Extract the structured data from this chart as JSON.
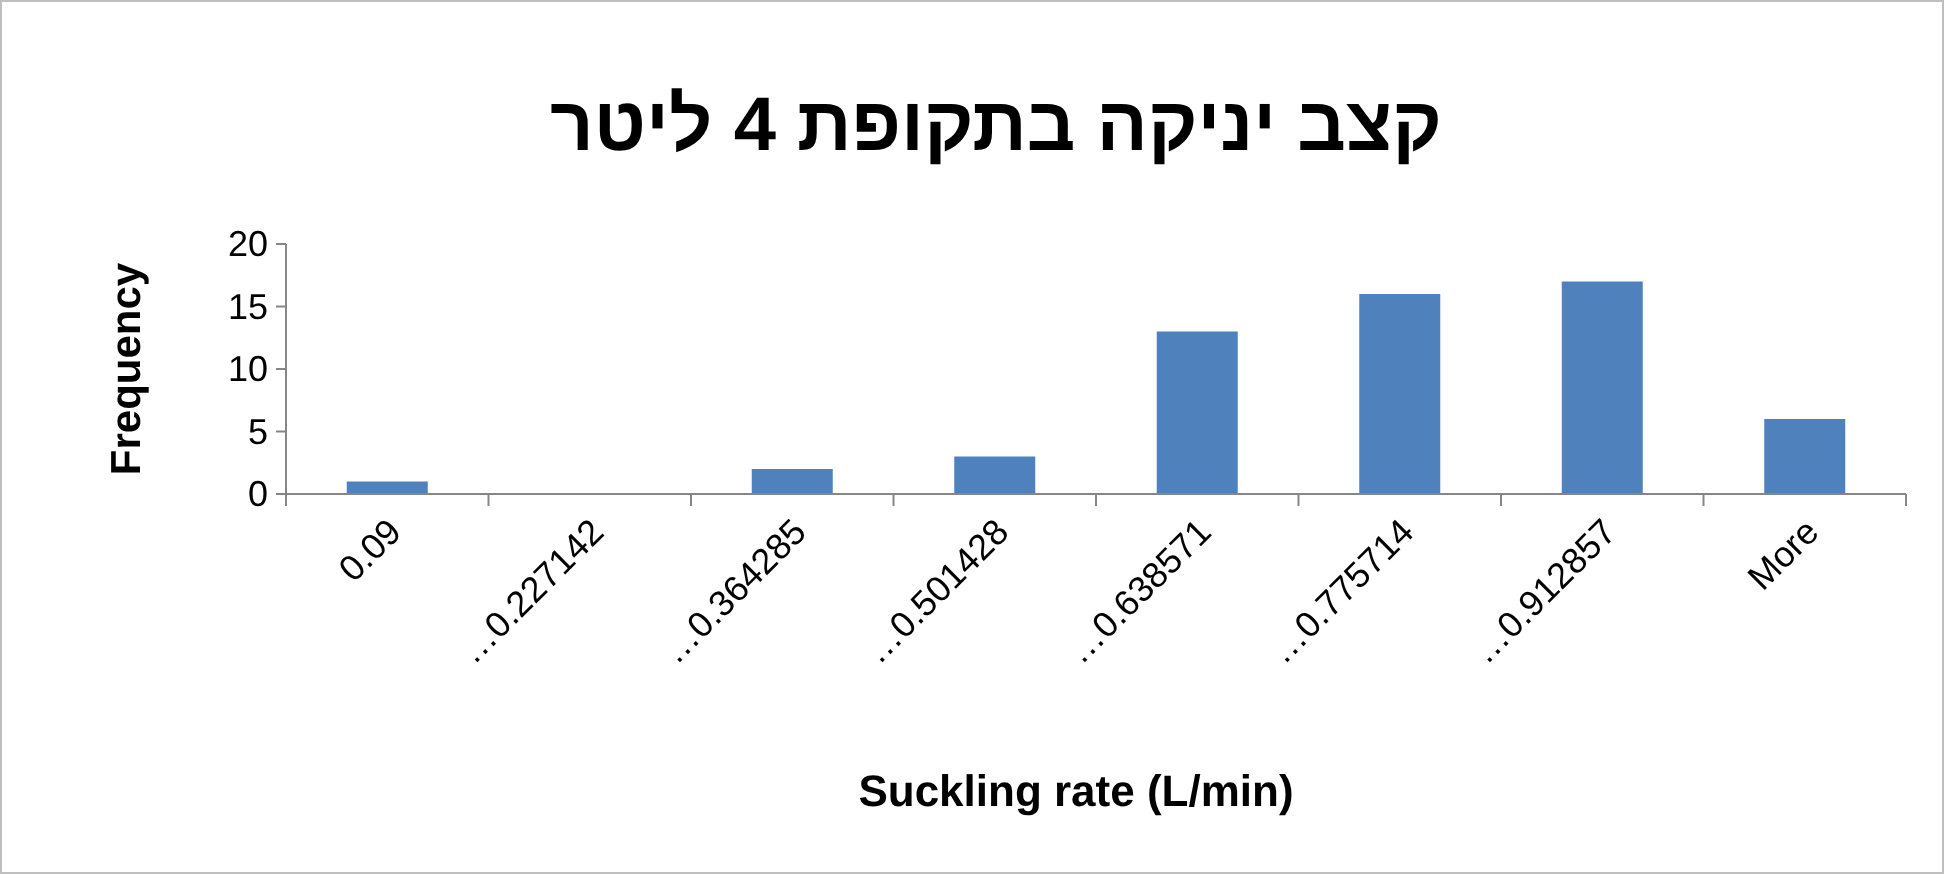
{
  "chart_data": {
    "type": "bar",
    "title": "קצב יניקה בתקופת 4 ליטר",
    "xlabel": "Suckling rate (L/min)",
    "ylabel": "Frequency",
    "categories": [
      "0.09",
      "…0.227142",
      "…0.364285",
      "…0.501428",
      "…0.638571",
      "…0.775714",
      "…0.912857",
      "More"
    ],
    "values": [
      1,
      0,
      2,
      3,
      13,
      16,
      17,
      6
    ],
    "color": "#4f81bd",
    "ylim": [
      0,
      20
    ],
    "yticks": [
      0,
      5,
      10,
      15,
      20
    ],
    "grid": false
  }
}
